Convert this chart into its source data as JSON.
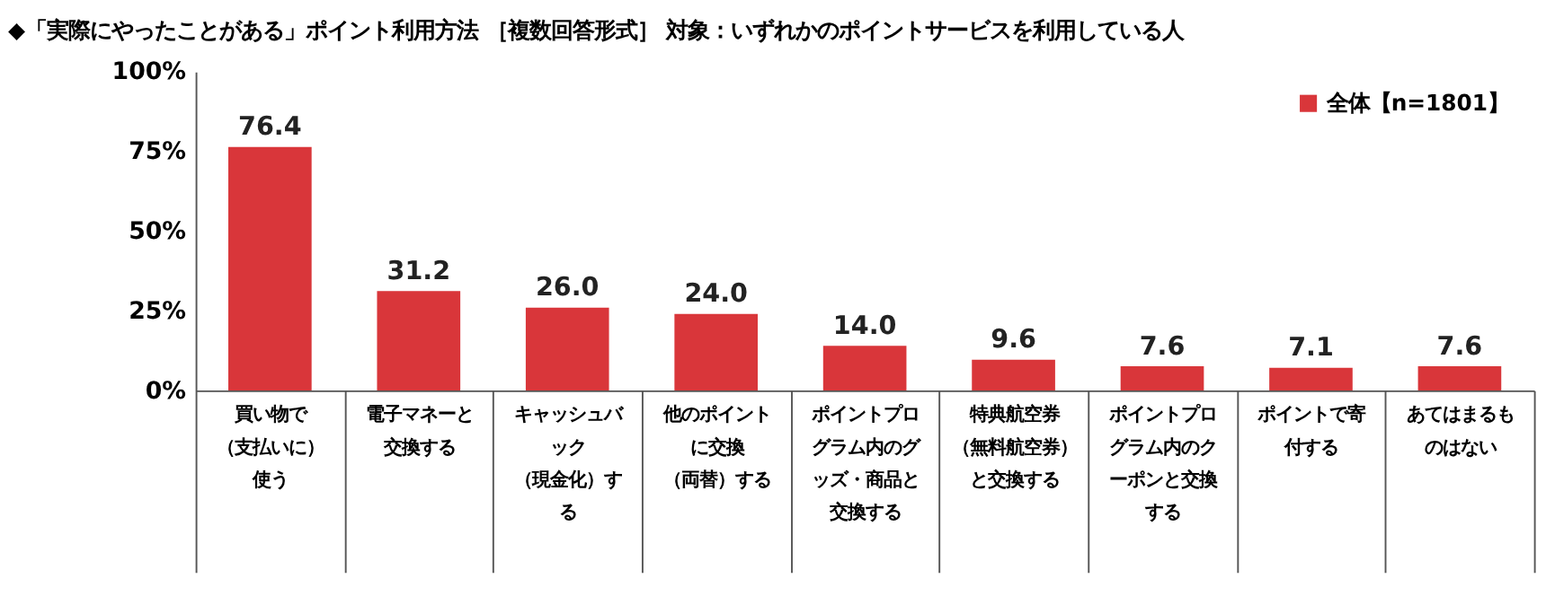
{
  "chart_data": {
    "type": "bar",
    "title": "◆「実際にやったことがある」ポイント利用方法 ［複数回答形式］ 対象：いずれかのポイントサービスを利用している人",
    "categories": [
      "買い物で（支払いに）使う",
      "電子マネーと交換する",
      "キャッシュバック（現金化）する",
      "他のポイントに交換（両替）する",
      "ポイントプログラム内のグッズ・商品と交換する",
      "特典航空券（無料航空券）と交換する",
      "ポイントプログラム内のクーポンと交換する",
      "ポイントで寄付する",
      "あてはまるものはない"
    ],
    "series": [
      {
        "name": "全体【n=1801】",
        "color": "#d9363a",
        "values": [
          76.4,
          31.2,
          26.0,
          24.0,
          14.0,
          9.6,
          7.6,
          7.1,
          7.6
        ]
      }
    ],
    "ylim": [
      0,
      100
    ],
    "yticks": [
      {
        "value": 0,
        "label": "0%"
      },
      {
        "value": 25,
        "label": "25%"
      },
      {
        "value": 50,
        "label": "50%"
      },
      {
        "value": 75,
        "label": "75%"
      },
      {
        "value": 100,
        "label": "100%"
      }
    ],
    "value_labels": [
      "76.4",
      "31.2",
      "26.0",
      "24.0",
      "14.0",
      "9.6",
      "7.6",
      "7.1",
      "7.6"
    ],
    "grid": false,
    "legend": "top right"
  }
}
